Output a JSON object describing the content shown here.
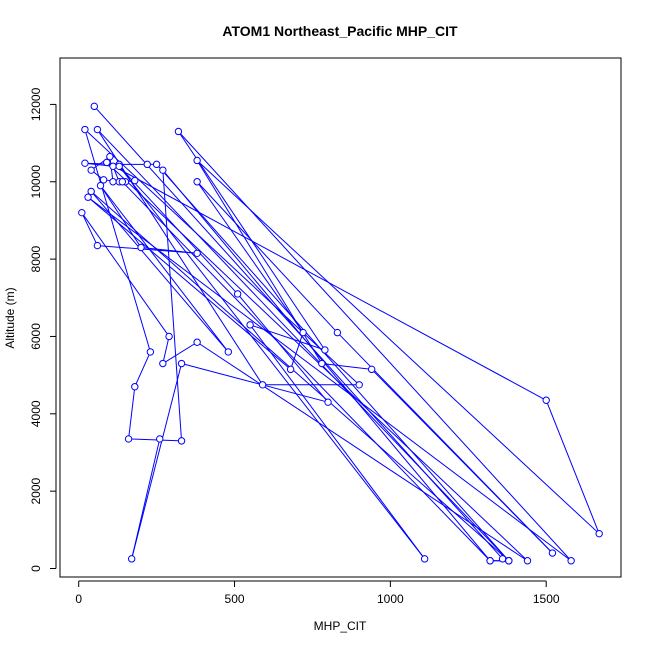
{
  "chart_data": {
    "type": "scatter",
    "title": "ATOM1 Northeast_Pacific MHP_CIT",
    "xlabel": "MHP_CIT",
    "ylabel": "Altitude (m)",
    "xlim": [
      -60,
      1740
    ],
    "ylim": [
      -220,
      13200
    ],
    "x_ticks": [
      0,
      500,
      1000,
      1500
    ],
    "x_tick_labels": [
      "0",
      "500",
      "1000",
      "1500"
    ],
    "y_ticks": [
      0,
      2000,
      4000,
      6000,
      8000,
      10000,
      12000
    ],
    "y_tick_labels": [
      "0",
      "2000",
      "4000",
      "6000",
      "8000",
      "10000",
      "12000"
    ],
    "grid": false,
    "point_style": "open-circle",
    "line_style": "connected",
    "color": "#0000ff",
    "points": [
      {
        "x": 50,
        "y": 11950
      },
      {
        "x": 1360,
        "y": 250
      },
      {
        "x": 1380,
        "y": 200
      },
      {
        "x": 250,
        "y": 10450
      },
      {
        "x": 220,
        "y": 10450
      },
      {
        "x": 130,
        "y": 10450
      },
      {
        "x": 20,
        "y": 10480
      },
      {
        "x": 110,
        "y": 10400
      },
      {
        "x": 130,
        "y": 10000
      },
      {
        "x": 180,
        "y": 10030
      },
      {
        "x": 150,
        "y": 10000
      },
      {
        "x": 110,
        "y": 10000
      },
      {
        "x": 100,
        "y": 10650
      },
      {
        "x": 40,
        "y": 10300
      },
      {
        "x": 80,
        "y": 10050
      },
      {
        "x": 140,
        "y": 10000
      },
      {
        "x": 1320,
        "y": 200
      },
      {
        "x": 1380,
        "y": 200
      },
      {
        "x": 60,
        "y": 11350
      },
      {
        "x": 590,
        "y": 4750
      },
      {
        "x": 900,
        "y": 4750
      },
      {
        "x": 20,
        "y": 11350
      },
      {
        "x": 230,
        "y": 5600
      },
      {
        "x": 180,
        "y": 4700
      },
      {
        "x": 160,
        "y": 3350
      },
      {
        "x": 330,
        "y": 3300
      },
      {
        "x": 270,
        "y": 10300
      },
      {
        "x": 1320,
        "y": 200
      },
      {
        "x": 1380,
        "y": 200
      },
      {
        "x": 40,
        "y": 9750
      },
      {
        "x": 480,
        "y": 5600
      },
      {
        "x": 70,
        "y": 9900
      },
      {
        "x": 200,
        "y": 8300
      },
      {
        "x": 380,
        "y": 8150
      },
      {
        "x": 60,
        "y": 8350
      },
      {
        "x": 10,
        "y": 9200
      },
      {
        "x": 290,
        "y": 6000
      },
      {
        "x": 270,
        "y": 5300
      },
      {
        "x": 380,
        "y": 5850
      },
      {
        "x": 1440,
        "y": 200
      },
      {
        "x": 90,
        "y": 10500
      },
      {
        "x": 1500,
        "y": 4350
      },
      {
        "x": 1670,
        "y": 900
      },
      {
        "x": 380,
        "y": 10550
      },
      {
        "x": 780,
        "y": 5300
      },
      {
        "x": 940,
        "y": 5150
      },
      {
        "x": 1520,
        "y": 400
      },
      {
        "x": 830,
        "y": 6100
      },
      {
        "x": 380,
        "y": 10000
      },
      {
        "x": 720,
        "y": 6100
      },
      {
        "x": 680,
        "y": 5150
      },
      {
        "x": 30,
        "y": 9600
      },
      {
        "x": 1580,
        "y": 200
      },
      {
        "x": 320,
        "y": 11300
      },
      {
        "x": 790,
        "y": 5650
      },
      {
        "x": 550,
        "y": 6300
      },
      {
        "x": 1110,
        "y": 250
      },
      {
        "x": 130,
        "y": 10400
      },
      {
        "x": 510,
        "y": 7100
      },
      {
        "x": 800,
        "y": 4300
      },
      {
        "x": 330,
        "y": 5300
      },
      {
        "x": 170,
        "y": 250
      },
      {
        "x": 260,
        "y": 3350
      }
    ]
  }
}
